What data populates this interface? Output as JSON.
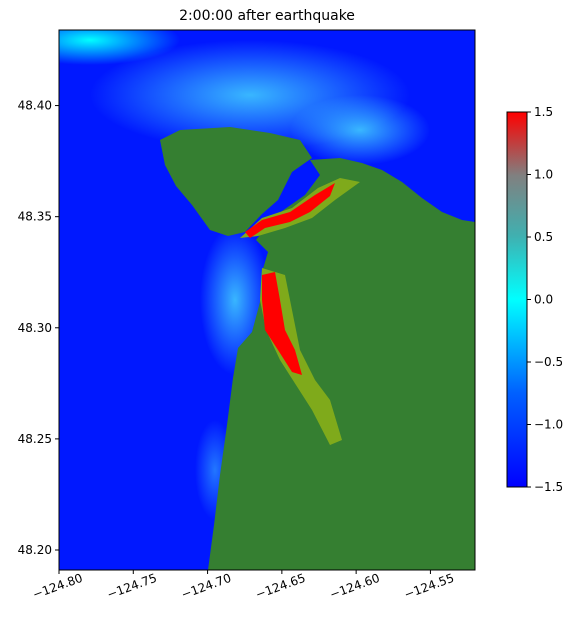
{
  "chart_data": {
    "type": "map",
    "title": "2:00:00 after earthquake",
    "xlim": [
      -124.8,
      -124.52
    ],
    "xticks": [
      {
        "value": -124.8,
        "label": "−124.80"
      },
      {
        "value": -124.75,
        "label": "−124.75"
      },
      {
        "value": -124.7,
        "label": "−124.70"
      },
      {
        "value": -124.65,
        "label": "−124.65"
      },
      {
        "value": -124.6,
        "label": "−124.60"
      },
      {
        "value": -124.55,
        "label": "−124.55"
      }
    ],
    "ylim": [
      48.191,
      48.434
    ],
    "yticks": [
      {
        "value": 48.2,
        "label": "48.20"
      },
      48.25,
      {
        "value": 48.3,
        "label": "48.30"
      },
      48.35,
      {
        "value": 48.4,
        "label": "48.40"
      }
    ],
    "colorbar": {
      "lim": [
        -1.5,
        1.5
      ],
      "ticks": [
        {
          "value": -1.5,
          "label": "−1.5"
        },
        {
          "value": -1,
          "label": "−1.0"
        },
        {
          "value": -0.5,
          "label": "−0.5"
        },
        {
          "value": 0,
          "label": "0.0"
        },
        0.5,
        {
          "value": 1,
          "label": "1.0"
        },
        1.5
      ]
    }
  }
}
